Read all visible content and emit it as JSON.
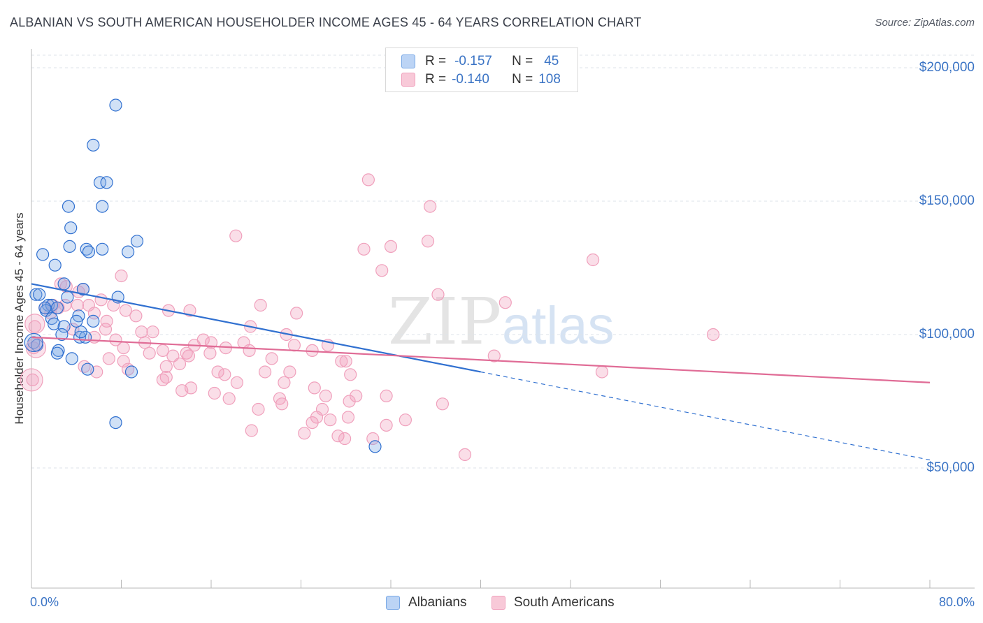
{
  "title": "ALBANIAN VS SOUTH AMERICAN HOUSEHOLDER INCOME AGES 45 - 64 YEARS CORRELATION CHART",
  "source": "Source: ZipAtlas.com",
  "watermark": {
    "zip": "ZIP",
    "atlas": "atlas"
  },
  "colors": {
    "albanian": "#7aa9e6",
    "albanian_line": "#3070d0",
    "south_american": "#f0a0bc",
    "south_american_line": "#e06c96",
    "axis_text": "#3b74c5",
    "grid": "#dde3ea"
  },
  "legend": {
    "rows": [
      {
        "r_label": "R =",
        "r_value": "-0.157",
        "n_label": "N =",
        "n_value": "45"
      },
      {
        "r_label": "R =",
        "r_value": "-0.140",
        "n_label": "N =",
        "n_value": "108"
      }
    ]
  },
  "bottom_legend": {
    "albanian": "Albanians",
    "south_american": "South Americans"
  },
  "chart_data": {
    "type": "scatter",
    "title": "ALBANIAN VS SOUTH AMERICAN HOUSEHOLDER INCOME AGES 45 - 64 YEARS CORRELATION CHART",
    "xlabel": "",
    "ylabel": "Householder Income Ages 45 - 64 years",
    "xlim": [
      0,
      80
    ],
    "ylim": [
      10000,
      210000
    ],
    "x_tick_labels": [
      "0.0%",
      "80.0%"
    ],
    "y_ticks": [
      50000,
      100000,
      150000,
      200000
    ],
    "y_tick_labels": [
      "$50,000",
      "$100,000",
      "$150,000",
      "$200,000"
    ],
    "grid": true,
    "legend_position": "top-center",
    "series": [
      {
        "name": "Albanians",
        "R": -0.157,
        "N": 45,
        "trend": {
          "x0": 0,
          "y0": 119000,
          "x1": 40,
          "y1": 86000,
          "dashed_to_x": 80,
          "dashed_to_y": 53000
        },
        "points": [
          [
            7.5,
            186000
          ],
          [
            5.5,
            171000
          ],
          [
            6.1,
            157000
          ],
          [
            6.7,
            157000
          ],
          [
            3.3,
            148000
          ],
          [
            6.3,
            148000
          ],
          [
            3.5,
            140000
          ],
          [
            9.4,
            135000
          ],
          [
            3.4,
            133000
          ],
          [
            4.9,
            132000
          ],
          [
            6.3,
            132000
          ],
          [
            5.1,
            131000
          ],
          [
            8.6,
            131000
          ],
          [
            1.0,
            130000
          ],
          [
            2.1,
            126000
          ],
          [
            2.9,
            119000
          ],
          [
            4.6,
            117000
          ],
          [
            0.4,
            115000
          ],
          [
            0.7,
            115000
          ],
          [
            3.2,
            114000
          ],
          [
            7.7,
            114000
          ],
          [
            1.5,
            111000
          ],
          [
            1.8,
            111000
          ],
          [
            2.3,
            110000
          ],
          [
            1.3,
            109000
          ],
          [
            4.2,
            107000
          ],
          [
            1.8,
            106000
          ],
          [
            4.0,
            105000
          ],
          [
            5.5,
            105000
          ],
          [
            2.0,
            104000
          ],
          [
            2.9,
            103000
          ],
          [
            2.7,
            100000
          ],
          [
            4.3,
            99000
          ],
          [
            4.8,
            99000
          ],
          [
            0.2,
            97000
          ],
          [
            0.5,
            96000
          ],
          [
            2.4,
            94000
          ],
          [
            2.3,
            93000
          ],
          [
            3.6,
            91000
          ],
          [
            5.0,
            87000
          ],
          [
            8.9,
            86000
          ],
          [
            7.5,
            67000
          ],
          [
            30.6,
            58000
          ],
          [
            1.2,
            110000
          ],
          [
            4.4,
            101000
          ]
        ]
      },
      {
        "name": "South Americans",
        "R": -0.14,
        "N": 108,
        "trend": {
          "x0": 0,
          "y0": 99000,
          "x1": 80,
          "y1": 82000
        },
        "points": [
          [
            30.0,
            158000
          ],
          [
            35.5,
            148000
          ],
          [
            18.2,
            137000
          ],
          [
            35.3,
            135000
          ],
          [
            32.0,
            133000
          ],
          [
            29.6,
            132000
          ],
          [
            50.0,
            128000
          ],
          [
            31.2,
            124000
          ],
          [
            8.0,
            122000
          ],
          [
            2.6,
            119000
          ],
          [
            3.1,
            118000
          ],
          [
            4.6,
            117000
          ],
          [
            4.2,
            116000
          ],
          [
            6.2,
            113000
          ],
          [
            36.2,
            115000
          ],
          [
            42.2,
            112000
          ],
          [
            20.4,
            111000
          ],
          [
            1.9,
            111000
          ],
          [
            3.0,
            111000
          ],
          [
            4.1,
            111000
          ],
          [
            5.1,
            111000
          ],
          [
            7.3,
            111000
          ],
          [
            1.2,
            110000
          ],
          [
            2.4,
            110000
          ],
          [
            8.4,
            109000
          ],
          [
            12.2,
            109000
          ],
          [
            14.1,
            109000
          ],
          [
            23.6,
            108000
          ],
          [
            5.6,
            108000
          ],
          [
            1.7,
            108000
          ],
          [
            9.3,
            107000
          ],
          [
            6.7,
            105000
          ],
          [
            0.3,
            103000
          ],
          [
            6.6,
            102000
          ],
          [
            19.5,
            103000
          ],
          [
            3.7,
            102000
          ],
          [
            9.8,
            101000
          ],
          [
            10.8,
            101000
          ],
          [
            60.7,
            100000
          ],
          [
            22.7,
            100000
          ],
          [
            5.6,
            99000
          ],
          [
            7.5,
            98000
          ],
          [
            15.3,
            98000
          ],
          [
            10.1,
            97000
          ],
          [
            16.0,
            97000
          ],
          [
            18.9,
            97000
          ],
          [
            14.5,
            96000
          ],
          [
            23.4,
            96000
          ],
          [
            26.4,
            96000
          ],
          [
            8.2,
            95000
          ],
          [
            11.7,
            94000
          ],
          [
            17.3,
            95000
          ],
          [
            19.4,
            94000
          ],
          [
            25.0,
            94000
          ],
          [
            0.2,
            95000
          ],
          [
            10.5,
            93000
          ],
          [
            13.8,
            93000
          ],
          [
            15.9,
            93000
          ],
          [
            14.0,
            92000
          ],
          [
            12.6,
            92000
          ],
          [
            41.2,
            92000
          ],
          [
            6.9,
            91000
          ],
          [
            21.4,
            91000
          ],
          [
            27.6,
            90000
          ],
          [
            8.2,
            90000
          ],
          [
            28.0,
            90000
          ],
          [
            13.2,
            89000
          ],
          [
            4.7,
            88000
          ],
          [
            12.0,
            88000
          ],
          [
            8.6,
            87000
          ],
          [
            16.6,
            86000
          ],
          [
            20.8,
            86000
          ],
          [
            23.0,
            86000
          ],
          [
            50.8,
            86000
          ],
          [
            17.2,
            85000
          ],
          [
            12.0,
            84000
          ],
          [
            28.4,
            85000
          ],
          [
            11.7,
            83000
          ],
          [
            18.3,
            82000
          ],
          [
            22.5,
            82000
          ],
          [
            0.1,
            83000
          ],
          [
            13.4,
            79000
          ],
          [
            14.2,
            80000
          ],
          [
            25.2,
            80000
          ],
          [
            16.3,
            78000
          ],
          [
            26.2,
            77000
          ],
          [
            28.9,
            77000
          ],
          [
            31.6,
            77000
          ],
          [
            17.6,
            76000
          ],
          [
            22.1,
            76000
          ],
          [
            28.3,
            75000
          ],
          [
            22.3,
            74000
          ],
          [
            36.6,
            74000
          ],
          [
            20.2,
            72000
          ],
          [
            25.9,
            72000
          ],
          [
            25.4,
            69000
          ],
          [
            26.6,
            68000
          ],
          [
            28.2,
            69000
          ],
          [
            25.0,
            67000
          ],
          [
            31.6,
            66000
          ],
          [
            19.6,
            64000
          ],
          [
            24.3,
            63000
          ],
          [
            30.4,
            61000
          ],
          [
            27.9,
            61000
          ],
          [
            38.6,
            55000
          ],
          [
            27.3,
            62000
          ],
          [
            33.3,
            68000
          ],
          [
            5.8,
            86000
          ]
        ]
      }
    ]
  }
}
